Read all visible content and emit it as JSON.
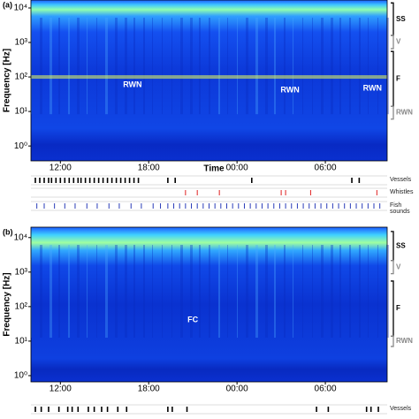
{
  "chart_data": [
    {
      "type": "spectrogram",
      "panel_label": "(a)",
      "ylabel": "Frequency [Hz]",
      "xlabel": "Time",
      "log_y": true,
      "xlim": [
        10,
        34.2
      ],
      "ylim": [
        0.37,
        17000
      ],
      "xticks": [
        {
          "value": 12,
          "label": "12:00"
        },
        {
          "value": 18,
          "label": "18:00"
        },
        {
          "value": 24,
          "label": "00:00"
        },
        {
          "value": 30,
          "label": "06:00"
        }
      ],
      "yticks": [
        {
          "value": 1,
          "label": "10⁰"
        },
        {
          "value": 10,
          "label": "10¹"
        },
        {
          "value": 100,
          "label": "10²"
        },
        {
          "value": 1000,
          "label": "10³"
        },
        {
          "value": 10000,
          "label": "10⁴"
        }
      ],
      "annotations": [
        {
          "text": "RWN",
          "x": 16.9,
          "y": 58
        },
        {
          "text": "RWN",
          "x": 27.6,
          "y": 41
        },
        {
          "text": "RWN",
          "x": 33.2,
          "y": 46
        }
      ],
      "bands": [
        {
          "label": "SS",
          "range": [
            1600,
            14000
          ],
          "color": "#000000"
        },
        {
          "label": "V",
          "range": [
            660,
            1600
          ],
          "color": "#888888"
        },
        {
          "label": "F",
          "range": [
            14,
            550
          ],
          "color": "#000000"
        },
        {
          "label": "RWN",
          "range": [
            6,
            14
          ],
          "color": "#888888"
        }
      ],
      "events": [
        {
          "name": "Vessels",
          "color": "#000000",
          "x": [
            10.3,
            10.6,
            10.9,
            11.2,
            11.4,
            11.7,
            12.0,
            12.3,
            12.6,
            12.9,
            13.2,
            13.4,
            13.7,
            14.0,
            14.3,
            14.6,
            14.9,
            15.2,
            15.5,
            15.8,
            16.1,
            16.4,
            16.7,
            17.0,
            17.3,
            19.3,
            19.8,
            25.0,
            31.8,
            32.3
          ]
        },
        {
          "name": "Whistles",
          "color": "#e02020",
          "x": [
            20.5,
            21.3,
            22.8,
            27.0,
            27.3,
            29.0,
            33.5
          ]
        },
        {
          "name": "Fish sounds",
          "color": "#2a3cb8",
          "x": [
            10.4,
            10.9,
            11.6,
            12.3,
            13.0,
            13.8,
            14.5,
            15.3,
            16.0,
            16.8,
            17.5,
            18.3,
            18.8,
            19.3,
            19.7,
            20.1,
            20.5,
            20.9,
            21.3,
            21.7,
            22.1,
            22.5,
            22.9,
            23.3,
            23.7,
            24.1,
            24.5,
            24.9,
            25.3,
            25.7,
            26.1,
            26.5,
            26.9,
            27.3,
            27.7,
            28.1,
            28.5,
            28.9,
            29.3,
            29.7,
            30.1,
            30.5,
            30.9,
            31.3,
            31.7,
            32.1,
            32.5,
            32.9,
            33.3,
            33.7
          ]
        }
      ]
    },
    {
      "type": "spectrogram",
      "panel_label": "(b)",
      "ylabel": "Frequency [Hz]",
      "log_y": true,
      "xlim": [
        10,
        34.2
      ],
      "ylim": [
        0.66,
        20000
      ],
      "xticks": [
        {
          "value": 12,
          "label": "12:00"
        },
        {
          "value": 18,
          "label": "18:00"
        },
        {
          "value": 24,
          "label": "00:00"
        },
        {
          "value": 30,
          "label": "06:00"
        }
      ],
      "yticks": [
        {
          "value": 1,
          "label": "10⁰"
        },
        {
          "value": 10,
          "label": "10¹"
        },
        {
          "value": 100,
          "label": "10²"
        },
        {
          "value": 1000,
          "label": "10³"
        },
        {
          "value": 10000,
          "label": "10⁴"
        }
      ],
      "annotations": [
        {
          "text": "FC",
          "x": 21.0,
          "y": 41
        }
      ],
      "bands": [
        {
          "label": "SS",
          "range": [
            2150,
            15000
          ],
          "color": "#000000"
        },
        {
          "label": "V",
          "range": [
            900,
            2150
          ],
          "color": "#888888"
        },
        {
          "label": "F",
          "range": [
            14,
            550
          ],
          "color": "#000000"
        },
        {
          "label": "RWN",
          "range": [
            7,
            14
          ],
          "color": "#888888"
        }
      ],
      "events": [
        {
          "name": "Vessels",
          "color": "#000000",
          "x": [
            10.3,
            10.7,
            11.2,
            11.9,
            12.5,
            12.8,
            13.2,
            13.9,
            14.3,
            14.8,
            15.2,
            15.9,
            16.5,
            19.3,
            19.6,
            20.6,
            29.4,
            30.2,
            32.8,
            33.1,
            33.6
          ]
        }
      ]
    }
  ]
}
